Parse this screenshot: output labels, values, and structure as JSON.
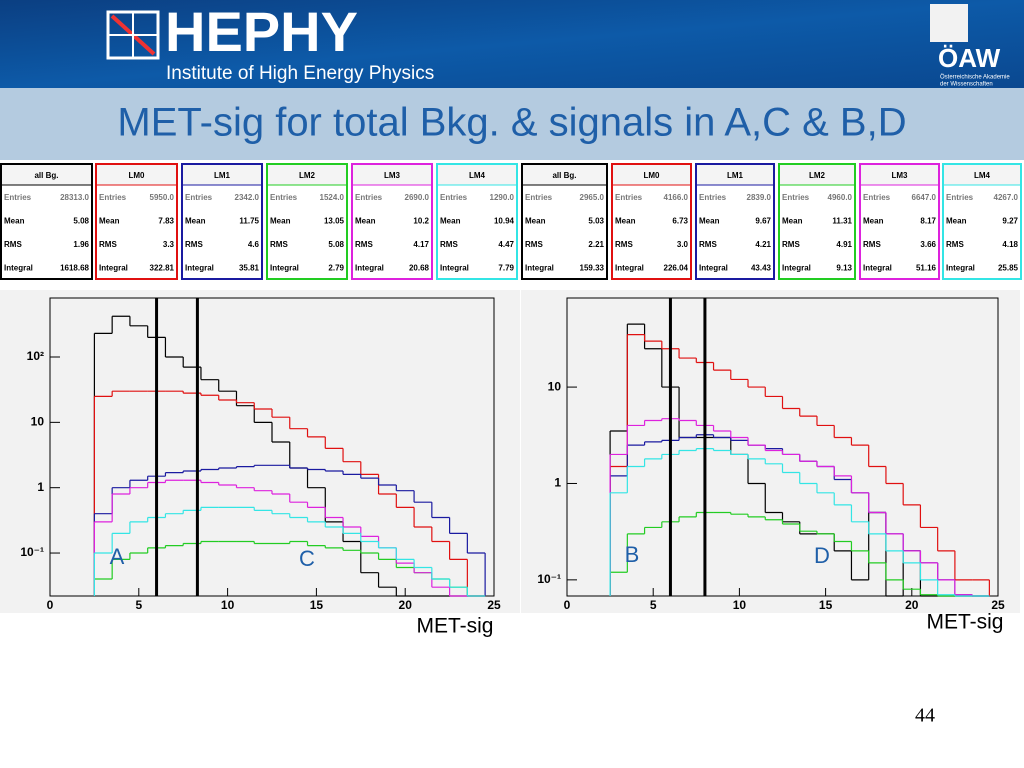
{
  "header": {
    "logo": "HEPHY",
    "subtitle": "Institute of High Energy Physics",
    "oaw": "ÖAW",
    "oaw_sub": [
      "Österreichische Akademie",
      "der Wissenschaften"
    ]
  },
  "title": "MET-sig for total Bkg. & signals in A,C & B,D",
  "page_number": "44",
  "stats": [
    {
      "title": "all Bg.",
      "color": "#000000",
      "rows": [
        [
          "Entries",
          "28313.0"
        ],
        [
          "Mean",
          "5.08"
        ],
        [
          "RMS",
          "1.96"
        ],
        [
          "Integral",
          "1618.68"
        ]
      ]
    },
    {
      "title": "LM0",
      "color": "#e01010",
      "rows": [
        [
          "Entries",
          "5950.0"
        ],
        [
          "Mean",
          "7.83"
        ],
        [
          "RMS",
          "3.3"
        ],
        [
          "Integral",
          "322.81"
        ]
      ]
    },
    {
      "title": "LM1",
      "color": "#1a1aa0",
      "rows": [
        [
          "Entries",
          "2342.0"
        ],
        [
          "Mean",
          "11.75"
        ],
        [
          "RMS",
          "4.6"
        ],
        [
          "Integral",
          "35.81"
        ]
      ]
    },
    {
      "title": "LM2",
      "color": "#22cc22",
      "rows": [
        [
          "Entries",
          "1524.0"
        ],
        [
          "Mean",
          "13.05"
        ],
        [
          "RMS",
          "5.08"
        ],
        [
          "Integral",
          "2.79"
        ]
      ]
    },
    {
      "title": "LM3",
      "color": "#dd22dd",
      "rows": [
        [
          "Entries",
          "2690.0"
        ],
        [
          "Mean",
          "10.2"
        ],
        [
          "RMS",
          "4.17"
        ],
        [
          "Integral",
          "20.68"
        ]
      ]
    },
    {
      "title": "LM4",
      "color": "#33e5e5",
      "rows": [
        [
          "Entries",
          "1290.0"
        ],
        [
          "Mean",
          "10.94"
        ],
        [
          "RMS",
          "4.47"
        ],
        [
          "Integral",
          "7.79"
        ]
      ]
    },
    {
      "title": "all Bg.",
      "color": "#000000",
      "rows": [
        [
          "Entries",
          "2965.0"
        ],
        [
          "Mean",
          "5.03"
        ],
        [
          "RMS",
          "2.21"
        ],
        [
          "Integral",
          "159.33"
        ]
      ]
    },
    {
      "title": "LM0",
      "color": "#e01010",
      "rows": [
        [
          "Entries",
          "4166.0"
        ],
        [
          "Mean",
          "6.73"
        ],
        [
          "RMS",
          "3.0"
        ],
        [
          "Integral",
          "226.04"
        ]
      ]
    },
    {
      "title": "LM1",
      "color": "#1a1aa0",
      "rows": [
        [
          "Entries",
          "2839.0"
        ],
        [
          "Mean",
          "9.67"
        ],
        [
          "RMS",
          "4.21"
        ],
        [
          "Integral",
          "43.43"
        ]
      ]
    },
    {
      "title": "LM2",
      "color": "#22cc22",
      "rows": [
        [
          "Entries",
          "4960.0"
        ],
        [
          "Mean",
          "11.31"
        ],
        [
          "RMS",
          "4.91"
        ],
        [
          "Integral",
          "9.13"
        ]
      ]
    },
    {
      "title": "LM3",
      "color": "#dd22dd",
      "rows": [
        [
          "Entries",
          "6647.0"
        ],
        [
          "Mean",
          "8.17"
        ],
        [
          "RMS",
          "3.66"
        ],
        [
          "Integral",
          "51.16"
        ]
      ]
    },
    {
      "title": "LM4",
      "color": "#33e5e5",
      "rows": [
        [
          "Entries",
          "4267.0"
        ],
        [
          "Mean",
          "9.27"
        ],
        [
          "RMS",
          "4.18"
        ],
        [
          "Integral",
          "25.85"
        ]
      ]
    }
  ],
  "chart_data": [
    {
      "type": "histogram",
      "x_label": "MET-sig",
      "ylog": true,
      "grid": false,
      "xlim": [
        0,
        25
      ],
      "xticks": [
        0,
        5,
        10,
        15,
        20,
        25
      ],
      "ylim": [
        0.022,
        800
      ],
      "yticks": [
        {
          "value": 0.1,
          "label": "10⁻¹"
        },
        1,
        10,
        {
          "value": 100,
          "label": "10²"
        }
      ],
      "bins": [
        2.5,
        3.5,
        4.5,
        5.5,
        6.5,
        7.5,
        8.5,
        9.5,
        10.5,
        11.5,
        12.5,
        13.5,
        14.5,
        15.5,
        16.5,
        17.5,
        18.5,
        19.5,
        20.5,
        21.5,
        22.5,
        23.5,
        24.5
      ],
      "cuts": [
        6,
        8.3
      ],
      "annotations": [
        "A",
        "C"
      ],
      "series": [
        {
          "color": "#000000",
          "values": [
            230,
            420,
            300,
            200,
            100,
            70,
            45,
            30,
            18,
            10,
            5,
            2,
            1,
            0.3,
            0.15,
            0.05,
            0.03,
            0,
            0,
            0,
            0,
            0
          ]
        },
        {
          "color": "#e01010",
          "values": [
            25,
            30,
            30,
            30,
            30,
            28,
            26,
            22,
            20,
            16,
            12,
            8,
            6,
            4,
            2.5,
            1.6,
            0.8,
            0.5,
            0.25,
            0.15,
            0.08,
            0.02
          ]
        },
        {
          "color": "#1a1aa0",
          "values": [
            0.4,
            1,
            1.3,
            1.5,
            1.7,
            1.8,
            1.9,
            2,
            2.1,
            2.2,
            2.2,
            2,
            1.9,
            1.8,
            1.6,
            1.4,
            1.1,
            0.9,
            0.6,
            0.35,
            0.2,
            0.1
          ]
        },
        {
          "color": "#22cc22",
          "values": [
            0.04,
            0.08,
            0.1,
            0.12,
            0.13,
            0.14,
            0.15,
            0.15,
            0.15,
            0.14,
            0.14,
            0.15,
            0.13,
            0.12,
            0.11,
            0.1,
            0.08,
            0.06,
            0.05,
            0.04,
            0.03,
            0.02
          ]
        },
        {
          "color": "#dd22dd",
          "values": [
            0.3,
            0.8,
            1,
            1.2,
            1.3,
            1.3,
            1.2,
            1.1,
            1,
            0.9,
            0.8,
            0.6,
            0.5,
            0.35,
            0.25,
            0.18,
            0.12,
            0.07,
            0.05,
            0.03,
            0.02,
            0
          ]
        },
        {
          "color": "#33e5e5",
          "values": [
            0.1,
            0.2,
            0.3,
            0.35,
            0.4,
            0.45,
            0.5,
            0.5,
            0.5,
            0.45,
            0.4,
            0.35,
            0.3,
            0.25,
            0.2,
            0.15,
            0.12,
            0.08,
            0.06,
            0.04,
            0.03,
            0.02
          ]
        }
      ]
    },
    {
      "type": "histogram",
      "x_label": "MET-sig",
      "ylog": true,
      "grid": false,
      "xlim": [
        0,
        25
      ],
      "xticks": [
        0,
        5,
        10,
        15,
        20,
        25
      ],
      "ylim": [
        0.068,
        84
      ],
      "yticks": [
        {
          "value": 0.1,
          "label": "10⁻¹"
        },
        1,
        10
      ],
      "bins": [
        2.5,
        3.5,
        4.5,
        5.5,
        6.5,
        7.5,
        8.5,
        9.5,
        10.5,
        11.5,
        12.5,
        13.5,
        14.5,
        15.5,
        16.5,
        17.5,
        18.5,
        19.5,
        20.5,
        21.5,
        22.5,
        23.5,
        24.5
      ],
      "cuts": [
        6,
        8
      ],
      "annotations": [
        "B",
        "D"
      ],
      "series": [
        {
          "color": "#000000",
          "values": [
            3.5,
            45,
            25,
            10,
            3,
            3,
            3,
            2,
            1,
            0.5,
            0.4,
            0.3,
            0.3,
            0.2,
            0.1,
            0.5,
            0,
            0.2,
            0,
            0,
            0,
            0
          ]
        },
        {
          "color": "#e01010",
          "values": [
            1.5,
            35,
            30,
            25,
            20,
            18,
            15,
            12,
            10,
            8,
            6,
            5,
            4,
            3,
            2.5,
            1.5,
            1,
            0.6,
            0.35,
            0.2,
            0.1,
            0.1
          ]
        },
        {
          "color": "#1a1aa0",
          "values": [
            1.2,
            2.5,
            2.7,
            2.8,
            3,
            3.2,
            3,
            2.8,
            2.5,
            2.3,
            2,
            1.7,
            1.5,
            1.1,
            0.8,
            0.5,
            0.3,
            0.2,
            0.15,
            0.1,
            0.07,
            0
          ]
        },
        {
          "color": "#22cc22",
          "values": [
            0.12,
            0.3,
            0.35,
            0.4,
            0.45,
            0.5,
            0.5,
            0.48,
            0.45,
            0.42,
            0.38,
            0.32,
            0.3,
            0.25,
            0.2,
            0.15,
            0.1,
            0.08,
            0.07,
            0,
            0,
            0
          ]
        },
        {
          "color": "#dd22dd",
          "values": [
            2,
            4,
            4.5,
            4.7,
            4.5,
            4,
            3.5,
            3,
            2.5,
            2.2,
            2,
            1.7,
            1.5,
            1.2,
            0.8,
            0.5,
            0.3,
            0.2,
            0.15,
            0.1,
            0.07,
            0
          ]
        },
        {
          "color": "#33e5e5",
          "values": [
            0.8,
            1.5,
            1.8,
            2,
            2.2,
            2.3,
            2.2,
            2,
            1.8,
            1.6,
            1.3,
            1,
            0.8,
            0.6,
            0.4,
            0.3,
            0.2,
            0.15,
            0.1,
            0.07,
            0,
            0
          ]
        }
      ]
    }
  ]
}
